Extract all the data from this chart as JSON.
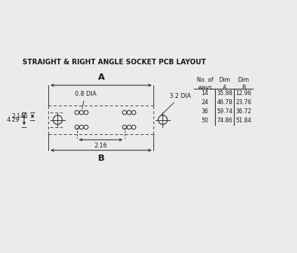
{
  "title": "STRAIGHT & RIGHT ANGLE SOCKET PCB LAYOUT",
  "bg_color": "#ebebeb",
  "dim_A_label": "A",
  "dim_B_label": "B",
  "dim_216": "2.16",
  "dim_2145": "2.145",
  "dim_429": "4.29",
  "dia_08": "0.8 DIA",
  "dia_32": "3.2 DIA",
  "table_headers_col0": "No. of\nways",
  "table_headers_col1": "Dim\nA",
  "table_headers_col2": "Dim\nB",
  "table_rows": [
    [
      "14",
      "35.98",
      "12.96"
    ],
    [
      "24",
      "46.78",
      "23.76"
    ],
    [
      "36",
      "59.74",
      "36.72"
    ],
    [
      "50",
      "74.86",
      "51.84"
    ]
  ],
  "line_color": "#2a2a2a",
  "dashed_color": "#444444",
  "text_color": "#1a1a1a",
  "title_fontsize": 7.0,
  "label_fontsize": 6.0,
  "table_fontsize": 5.8
}
